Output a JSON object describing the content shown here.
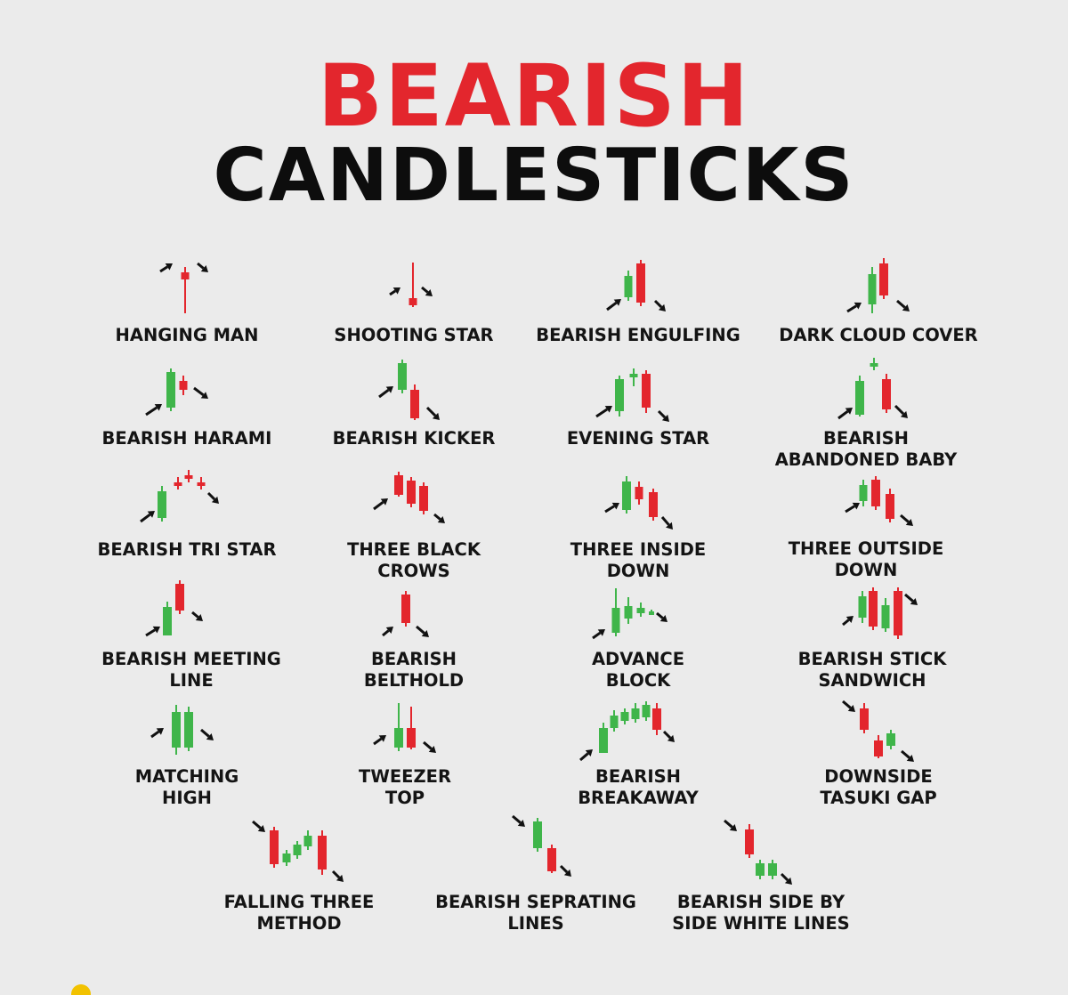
{
  "title": {
    "line1": "BEARISH",
    "line2": "CANDLESTICKS",
    "color_line1": "#e3262d"
  },
  "colors": {
    "bear": "#e3262d",
    "bull": "#3fb54a",
    "arrow": "#111111",
    "background": "#ebebeb"
  },
  "patterns": [
    {
      "id": "hanging-man",
      "label_lines": [
        "HANGING MAN"
      ]
    },
    {
      "id": "shooting-star",
      "label_lines": [
        "SHOOTING STAR"
      ]
    },
    {
      "id": "bearish-engulfing",
      "label_lines": [
        "BEARISH ENGULFING"
      ]
    },
    {
      "id": "dark-cloud-cover",
      "label_lines": [
        "DARK CLOUD COVER"
      ]
    },
    {
      "id": "bearish-harami",
      "label_lines": [
        "BEARISH HARAMI"
      ]
    },
    {
      "id": "bearish-kicker",
      "label_lines": [
        "BEARISH KICKER"
      ]
    },
    {
      "id": "evening-star",
      "label_lines": [
        "EVENING STAR"
      ]
    },
    {
      "id": "bearish-abandoned-baby",
      "label_lines": [
        "BEARISH",
        "ABANDONED BABY"
      ]
    },
    {
      "id": "bearish-tri-star",
      "label_lines": [
        "BEARISH TRI STAR"
      ]
    },
    {
      "id": "three-black-crows",
      "label_lines": [
        "THREE BLACK",
        "CROWS"
      ]
    },
    {
      "id": "three-inside-down",
      "label_lines": [
        "THREE INSIDE",
        "DOWN"
      ]
    },
    {
      "id": "three-outside-down",
      "label_lines": [
        "THREE OUTSIDE",
        "DOWN"
      ]
    },
    {
      "id": "bearish-meeting-line",
      "label_lines": [
        "BEARISH MEETING",
        "LINE"
      ]
    },
    {
      "id": "bearish-belthold",
      "label_lines": [
        "BEARISH",
        "BELTHOLD"
      ]
    },
    {
      "id": "advance-block",
      "label_lines": [
        "ADVANCE",
        "BLOCK"
      ]
    },
    {
      "id": "bearish-stick-sandwich",
      "label_lines": [
        "BEARISH STICK",
        "SANDWICH"
      ]
    },
    {
      "id": "matching-high",
      "label_lines": [
        "MATCHING",
        "HIGH"
      ]
    },
    {
      "id": "tweezer-top",
      "label_lines": [
        "TWEEZER",
        "TOP"
      ]
    },
    {
      "id": "bearish-breakaway",
      "label_lines": [
        "BEARISH",
        "BREAKAWAY"
      ]
    },
    {
      "id": "downside-tasuki-gap",
      "label_lines": [
        "DOWNSIDE",
        "TASUKI GAP"
      ]
    },
    {
      "id": "falling-three-method",
      "label_lines": [
        "FALLING THREE",
        "METHOD"
      ]
    },
    {
      "id": "bearish-seprating-lines",
      "label_lines": [
        "BEARISH SEPRATING",
        "LINES"
      ]
    },
    {
      "id": "bearish-side-by-side-white-lines",
      "label_lines": [
        "BEARISH SIDE BY",
        "SIDE WHITE LINES"
      ]
    }
  ]
}
